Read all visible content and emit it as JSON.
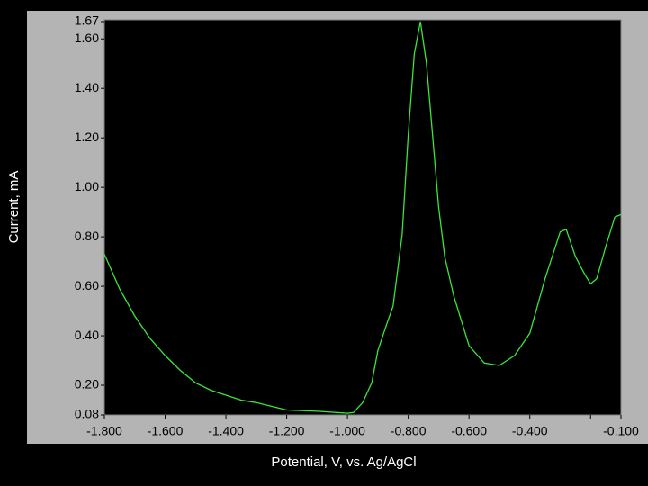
{
  "chart_data": {
    "type": "line",
    "x_label": "Potential, V, vs. Ag/AgCl",
    "y_label": "Current, mA",
    "xlim": [
      -1.8,
      -0.1
    ],
    "ylim": [
      0.08,
      1.67
    ],
    "xticks": [
      {
        "value": -1.8,
        "label": "-1.800"
      },
      {
        "value": -1.6,
        "label": "-1.600"
      },
      {
        "value": -1.4,
        "label": "-1.400"
      },
      {
        "value": -1.2,
        "label": "-1.200"
      },
      {
        "value": -1.0,
        "label": "-1.000"
      },
      {
        "value": -0.8,
        "label": "-0.800"
      },
      {
        "value": -0.6,
        "label": "-0.600"
      },
      {
        "value": -0.4,
        "label": "-0.400"
      },
      {
        "value": -0.2,
        "label": null
      },
      {
        "value": -0.1,
        "label": "-0.100"
      }
    ],
    "yticks": [
      0.08,
      {
        "value": 0.2,
        "label": "0.20"
      },
      {
        "value": 0.4,
        "label": "0.40"
      },
      {
        "value": 0.6,
        "label": "0.60"
      },
      {
        "value": 0.8,
        "label": "0.80"
      },
      {
        "value": 1.0,
        "label": "1.00"
      },
      {
        "value": 1.2,
        "label": "1.20"
      },
      {
        "value": 1.4,
        "label": "1.40"
      },
      {
        "value": 1.6,
        "label": "1.60"
      },
      1.67
    ],
    "series": [
      {
        "color": "#39e639",
        "x": [
          -1.8,
          -1.75,
          -1.7,
          -1.65,
          -1.6,
          -1.55,
          -1.5,
          -1.45,
          -1.4,
          -1.35,
          -1.3,
          -1.2,
          -1.1,
          -1.0,
          -0.98,
          -0.95,
          -0.92,
          -0.9,
          -0.87,
          -0.85,
          -0.82,
          -0.8,
          -0.78,
          -0.76,
          -0.74,
          -0.72,
          -0.7,
          -0.68,
          -0.65,
          -0.6,
          -0.55,
          -0.5,
          -0.45,
          -0.4,
          -0.35,
          -0.3,
          -0.28,
          -0.25,
          -0.22,
          -0.2,
          -0.18,
          -0.15,
          -0.12,
          -0.1
        ],
        "values": [
          0.73,
          0.59,
          0.48,
          0.39,
          0.32,
          0.26,
          0.21,
          0.18,
          0.16,
          0.14,
          0.13,
          0.1,
          0.095,
          0.087,
          0.09,
          0.13,
          0.21,
          0.34,
          0.45,
          0.52,
          0.81,
          1.21,
          1.54,
          1.67,
          1.5,
          1.21,
          0.92,
          0.72,
          0.56,
          0.36,
          0.29,
          0.28,
          0.32,
          0.41,
          0.63,
          0.82,
          0.83,
          0.72,
          0.65,
          0.61,
          0.63,
          0.76,
          0.88,
          0.89
        ]
      }
    ]
  }
}
